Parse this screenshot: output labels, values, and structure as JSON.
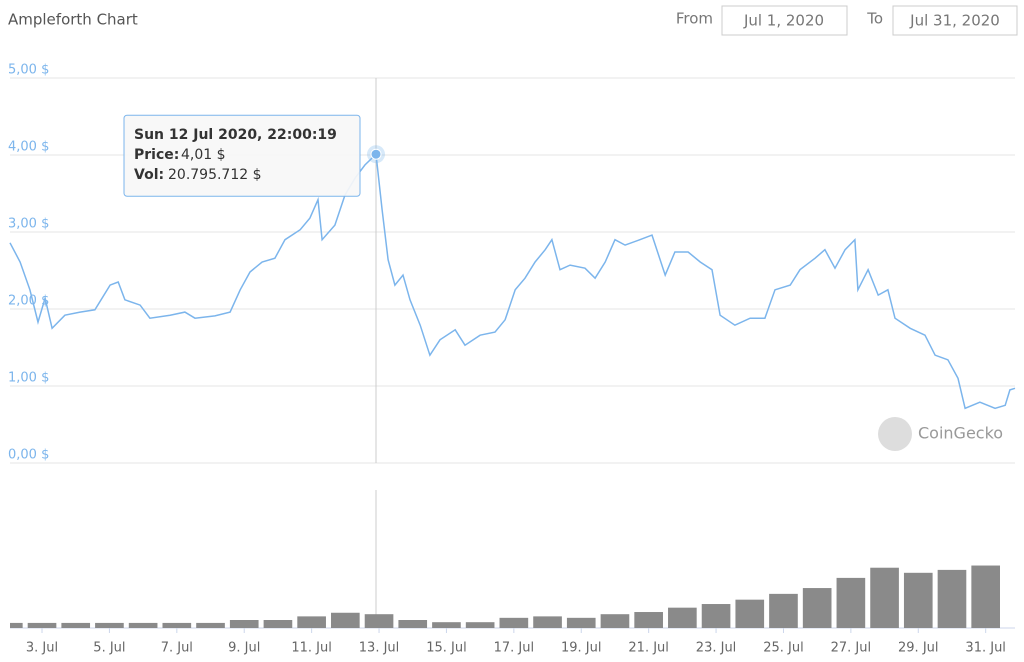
{
  "chart_data": {
    "type": "line",
    "title": "Ampleforth Chart",
    "controls": {
      "from_label": "From",
      "from": "Jul 1, 2020",
      "to_label": "To",
      "to": "Jul 31, 2020"
    },
    "watermark": "CoinGecko",
    "xlim": [
      2.05,
      31.87
    ],
    "xticks": [
      {
        "value": 3,
        "label": "3. Jul"
      },
      {
        "value": 5,
        "label": "5. Jul"
      },
      {
        "value": 7,
        "label": "7. Jul"
      },
      {
        "value": 9,
        "label": "9. Jul"
      },
      {
        "value": 11,
        "label": "11. Jul"
      },
      {
        "value": 13,
        "label": "13. Jul"
      },
      {
        "value": 15,
        "label": "15. Jul"
      },
      {
        "value": 17,
        "label": "17. Jul"
      },
      {
        "value": 19,
        "label": "19. Jul"
      },
      {
        "value": 21,
        "label": "21. Jul"
      },
      {
        "value": 23,
        "label": "23. Jul"
      },
      {
        "value": 25,
        "label": "25. Jul"
      },
      {
        "value": 27,
        "label": "27. Jul"
      },
      {
        "value": 29,
        "label": "29. Jul"
      },
      {
        "value": 31,
        "label": "31. Jul"
      }
    ],
    "ylim": [
      0,
      5
    ],
    "yticks": [
      {
        "value": 0,
        "label": "0,00 $"
      },
      {
        "value": 1,
        "label": "1,00 $"
      },
      {
        "value": 2,
        "label": "2,00 $"
      },
      {
        "value": 3,
        "label": "3,00 $"
      },
      {
        "value": 4,
        "label": "4,00 $"
      },
      {
        "value": 5,
        "label": "5,00 $"
      }
    ],
    "grid": true,
    "price": {
      "color": "#7cb5ec",
      "x": [
        2.05,
        2.35,
        2.64,
        2.88,
        3.09,
        3.3,
        3.68,
        4.13,
        4.57,
        5.02,
        5.26,
        5.46,
        5.91,
        6.2,
        6.8,
        7.24,
        7.54,
        8.13,
        8.58,
        8.88,
        9.17,
        9.53,
        9.91,
        10.21,
        10.66,
        10.95,
        11.19,
        11.31,
        11.69,
        11.99,
        12.29,
        12.58,
        12.91,
        13.09,
        13.27,
        13.47,
        13.71,
        13.92,
        14.22,
        14.51,
        14.81,
        15.26,
        15.55,
        16.0,
        16.44,
        16.74,
        17.04,
        17.33,
        17.63,
        17.93,
        18.13,
        18.37,
        18.67,
        19.11,
        19.41,
        19.71,
        20.0,
        20.3,
        20.74,
        21.1,
        21.49,
        21.78,
        22.17,
        22.53,
        22.88,
        23.12,
        23.56,
        24.01,
        24.45,
        24.75,
        25.2,
        25.49,
        25.94,
        26.23,
        26.53,
        26.83,
        27.12,
        27.21,
        27.51,
        27.81,
        28.1,
        28.31,
        28.76,
        29.2,
        29.5,
        29.88,
        30.18,
        30.39,
        30.83,
        31.28,
        31.58,
        31.72,
        31.87
      ],
      "values": [
        2.86,
        2.61,
        2.25,
        1.83,
        2.14,
        1.75,
        1.92,
        1.96,
        1.99,
        2.31,
        2.35,
        2.12,
        2.05,
        1.88,
        1.92,
        1.96,
        1.88,
        1.91,
        1.96,
        2.25,
        2.48,
        2.61,
        2.66,
        2.9,
        3.03,
        3.18,
        3.42,
        2.9,
        3.09,
        3.48,
        3.7,
        3.87,
        4.01,
        3.29,
        2.64,
        2.31,
        2.44,
        2.12,
        1.79,
        1.4,
        1.6,
        1.73,
        1.53,
        1.66,
        1.7,
        1.86,
        2.25,
        2.4,
        2.61,
        2.77,
        2.9,
        2.51,
        2.57,
        2.53,
        2.4,
        2.61,
        2.9,
        2.83,
        2.9,
        2.96,
        2.44,
        2.74,
        2.74,
        2.61,
        2.51,
        1.92,
        1.79,
        1.88,
        1.88,
        2.25,
        2.31,
        2.51,
        2.66,
        2.77,
        2.53,
        2.77,
        2.9,
        2.25,
        2.51,
        2.18,
        2.25,
        1.88,
        1.75,
        1.66,
        1.4,
        1.34,
        1.1,
        0.71,
        0.79,
        0.71,
        0.75,
        0.95,
        0.97
      ]
    },
    "volume": {
      "color": "#8a8a8a",
      "y2lim": [
        0,
        190000000
      ],
      "x": [
        2,
        3,
        4,
        5,
        6,
        7,
        8,
        9,
        10,
        11,
        12,
        13,
        14,
        15,
        16,
        17,
        18,
        19,
        20,
        21,
        22,
        23,
        24,
        25,
        26,
        27,
        28,
        29,
        30,
        31
      ],
      "values": [
        7000000,
        7000000,
        7000000,
        7000000,
        7000000,
        7000000,
        7000000,
        11000000,
        11000000,
        16000000,
        21000000,
        19000000,
        11000000,
        8000000,
        8000000,
        14000000,
        16000000,
        14000000,
        19000000,
        22000000,
        28000000,
        33000000,
        39000000,
        47000000,
        55000000,
        69000000,
        83000000,
        76000000,
        80000000,
        86000000
      ]
    },
    "tooltip": {
      "x": 12.91,
      "y": 4.01,
      "title": "Sun 12 Jul 2020, 22:00:19",
      "price_label": "Price:",
      "price": "4,01 $",
      "vol_label": "Vol:",
      "vol": "20.795.712 $"
    }
  }
}
